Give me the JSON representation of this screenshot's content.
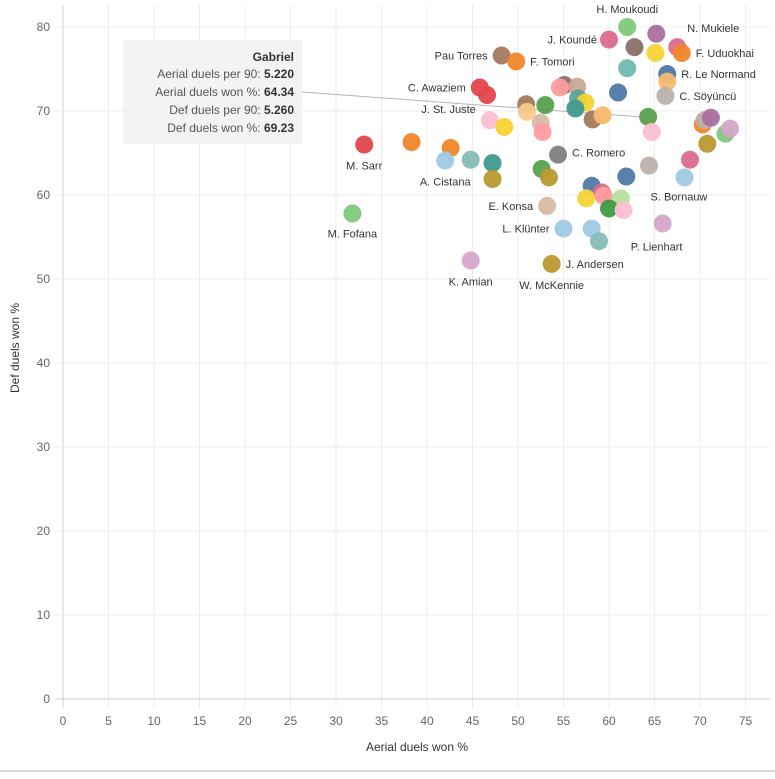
{
  "chart_data": {
    "type": "scatter",
    "xlabel": "Aerial duels won %",
    "ylabel": "Def duels won %",
    "xlim": [
      0,
      77
    ],
    "ylim": [
      -1,
      83
    ],
    "x_ticks": [
      0,
      5,
      10,
      15,
      20,
      25,
      30,
      35,
      40,
      45,
      50,
      55,
      60,
      65,
      70,
      75
    ],
    "y_ticks": [
      0,
      10,
      20,
      30,
      40,
      50,
      60,
      70,
      80
    ],
    "grid": true,
    "points": [
      {
        "x": 62.0,
        "y": 80.0,
        "color": "#7ec97a",
        "label": "H. Moukoudi"
      },
      {
        "x": 65.2,
        "y": 79.2,
        "color": "#a96f9e",
        "label": ""
      },
      {
        "x": 67.5,
        "y": 77.6,
        "color": "#dc6a8c",
        "label": "N. Mukiele"
      },
      {
        "x": 60.0,
        "y": 78.5,
        "color": "#dc6a8c",
        "label": "J. Koundé"
      },
      {
        "x": 62.8,
        "y": 77.6,
        "color": "#8c7068",
        "label": ""
      },
      {
        "x": 48.2,
        "y": 76.6,
        "color": "#a47a5c",
        "label": "Pau Torres"
      },
      {
        "x": 49.8,
        "y": 75.9,
        "color": "#ef862a",
        "label": "F. Tomori"
      },
      {
        "x": 65.1,
        "y": 76.9,
        "color": "#f5d335",
        "label": ""
      },
      {
        "x": 68.0,
        "y": 76.9,
        "color": "#ef862a",
        "label": "F. Uduokhai"
      },
      {
        "x": 62.0,
        "y": 75.1,
        "color": "#6fbaae",
        "label": ""
      },
      {
        "x": 66.4,
        "y": 74.4,
        "color": "#4e79a7",
        "label": "R. Le Normand"
      },
      {
        "x": 66.4,
        "y": 73.5,
        "color": "#f7bb6f",
        "label": ""
      },
      {
        "x": 45.8,
        "y": 72.8,
        "color": "#e0474d",
        "label": "C. Awaziem"
      },
      {
        "x": 46.6,
        "y": 71.9,
        "color": "#e0474d",
        "label": ""
      },
      {
        "x": 55.1,
        "y": 73.1,
        "color": "#8c7068",
        "label": ""
      },
      {
        "x": 54.6,
        "y": 72.8,
        "color": "#ff9da0",
        "label": ""
      },
      {
        "x": 56.5,
        "y": 72.9,
        "color": "#c9a896",
        "label": ""
      },
      {
        "x": 61.0,
        "y": 72.2,
        "color": "#4e79a7",
        "label": ""
      },
      {
        "x": 66.2,
        "y": 71.8,
        "color": "#bab0ac",
        "label": "C. Söyüncü"
      },
      {
        "x": 50.9,
        "y": 70.8,
        "color": "#a47a5c",
        "label": ""
      },
      {
        "x": 53.0,
        "y": 70.7,
        "color": "#59a14f",
        "label": ""
      },
      {
        "x": 56.6,
        "y": 71.5,
        "color": "#5aa69b",
        "label": ""
      },
      {
        "x": 57.4,
        "y": 71.0,
        "color": "#f5d335",
        "label": ""
      },
      {
        "x": 56.3,
        "y": 70.3,
        "color": "#3f9a8e",
        "label": ""
      },
      {
        "x": 51.0,
        "y": 69.9,
        "color": "#f7cb8a",
        "label": ""
      },
      {
        "x": 58.2,
        "y": 69.0,
        "color": "#a47a5c",
        "label": ""
      },
      {
        "x": 59.3,
        "y": 69.5,
        "color": "#f7bb6f",
        "label": ""
      },
      {
        "x": 64.3,
        "y": 69.3,
        "color": "#59a14f",
        "label": ""
      },
      {
        "x": 46.9,
        "y": 68.9,
        "color": "#fabfd2",
        "label": "J. St. Juste"
      },
      {
        "x": 48.5,
        "y": 68.1,
        "color": "#f5d335",
        "label": ""
      },
      {
        "x": 52.5,
        "y": 68.6,
        "color": "#d9b9a8",
        "label": ""
      },
      {
        "x": 52.7,
        "y": 67.5,
        "color": "#ff9da0",
        "label": ""
      },
      {
        "x": 64.7,
        "y": 67.5,
        "color": "#fabfd2",
        "label": ""
      },
      {
        "x": 70.3,
        "y": 68.4,
        "color": "#ef862a",
        "label": ""
      },
      {
        "x": 70.5,
        "y": 68.9,
        "color": "#bab0ac",
        "label": ""
      },
      {
        "x": 71.2,
        "y": 69.2,
        "color": "#a96f9e",
        "label": ""
      },
      {
        "x": 72.8,
        "y": 67.3,
        "color": "#7ec97a",
        "label": ""
      },
      {
        "x": 73.3,
        "y": 67.9,
        "color": "#d4a6c8",
        "label": ""
      },
      {
        "x": 70.8,
        "y": 66.1,
        "color": "#b89930",
        "label": ""
      },
      {
        "x": 33.1,
        "y": 66.0,
        "color": "#e0474d",
        "label": "M. Sarr"
      },
      {
        "x": 38.3,
        "y": 66.3,
        "color": "#ef862a",
        "label": ""
      },
      {
        "x": 42.6,
        "y": 65.6,
        "color": "#ef862a",
        "label": ""
      },
      {
        "x": 54.4,
        "y": 64.8,
        "color": "#7f7f7f",
        "label": "C. Romero"
      },
      {
        "x": 42.0,
        "y": 64.1,
        "color": "#9fcae3",
        "label": "A. Cistana"
      },
      {
        "x": 44.8,
        "y": 64.2,
        "color": "#86bcb6",
        "label": ""
      },
      {
        "x": 47.2,
        "y": 63.8,
        "color": "#3f9a8e",
        "label": ""
      },
      {
        "x": 52.6,
        "y": 63.1,
        "color": "#59a14f",
        "label": ""
      },
      {
        "x": 53.4,
        "y": 62.1,
        "color": "#b89930",
        "label": ""
      },
      {
        "x": 64.4,
        "y": 63.5,
        "color": "#bab0ac",
        "label": ""
      },
      {
        "x": 68.9,
        "y": 64.2,
        "color": "#dc6a8c",
        "label": ""
      },
      {
        "x": 47.2,
        "y": 61.9,
        "color": "#b89930",
        "label": ""
      },
      {
        "x": 61.9,
        "y": 62.2,
        "color": "#4e79a7",
        "label": ""
      },
      {
        "x": 68.3,
        "y": 62.1,
        "color": "#9fcae3",
        "label": "S. Bornauw"
      },
      {
        "x": 58.1,
        "y": 61.1,
        "color": "#4e79a7",
        "label": ""
      },
      {
        "x": 59.2,
        "y": 60.3,
        "color": "#dc6a8c",
        "label": ""
      },
      {
        "x": 59.4,
        "y": 59.9,
        "color": "#ff9da0",
        "label": ""
      },
      {
        "x": 57.5,
        "y": 59.6,
        "color": "#f5d335",
        "label": ""
      },
      {
        "x": 61.3,
        "y": 59.6,
        "color": "#b5e09a",
        "label": ""
      },
      {
        "x": 53.2,
        "y": 58.7,
        "color": "#d9b9a8",
        "label": "E. Konsa"
      },
      {
        "x": 60.0,
        "y": 58.4,
        "color": "#3e9b45",
        "label": ""
      },
      {
        "x": 61.6,
        "y": 58.2,
        "color": "#fabfd2",
        "label": ""
      },
      {
        "x": 31.8,
        "y": 57.8,
        "color": "#7ec97a",
        "label": "M. Fofana"
      },
      {
        "x": 55.0,
        "y": 56.0,
        "color": "#9fcae3",
        "label": "L. Klünter"
      },
      {
        "x": 58.1,
        "y": 56.0,
        "color": "#9fcae3",
        "label": ""
      },
      {
        "x": 65.9,
        "y": 56.6,
        "color": "#d4a6c8",
        "label": "P. Lienhart"
      },
      {
        "x": 58.9,
        "y": 54.5,
        "color": "#86bcb6",
        "label": ""
      },
      {
        "x": 44.8,
        "y": 52.2,
        "color": "#d4a6c8",
        "label": "K. Amian"
      },
      {
        "x": 53.7,
        "y": 51.8,
        "color": "#b89930",
        "label": "J. Andersen"
      }
    ],
    "extra_labels": [
      {
        "text": "W. McKennie",
        "x": 53.7,
        "y": 51.8
      }
    ],
    "tooltip": {
      "title": "Gabriel",
      "rows": [
        {
          "label": "Aerial duels per 90:",
          "value": "5.220"
        },
        {
          "label": "Aerial duels won %:",
          "value": "64.34"
        },
        {
          "label": "Def duels per 90:",
          "value": "5.260"
        },
        {
          "label": "Def duels won %:",
          "value": "69.23"
        }
      ],
      "target": {
        "x": 64.34,
        "y": 69.23
      }
    }
  }
}
